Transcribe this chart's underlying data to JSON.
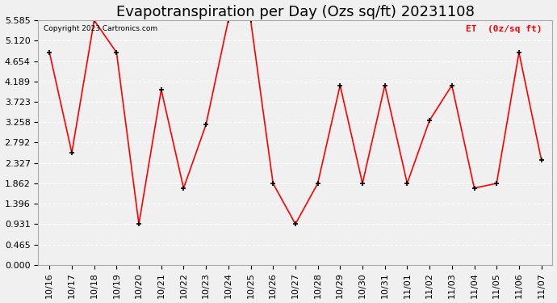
{
  "title": "Evapotranspiration per Day (Ozs sq/ft) 20231108",
  "copyright": "Copyright 2023 Cartronics.com",
  "legend_label": "ET  (0z/sq ft)",
  "x_labels": [
    "10/16",
    "10/17",
    "10/18",
    "10/19",
    "10/20",
    "10/21",
    "10/22",
    "10/23",
    "10/24",
    "10/25",
    "10/26",
    "10/27",
    "10/28",
    "10/29",
    "10/30",
    "10/31",
    "11/01",
    "11/02",
    "11/03",
    "11/04",
    "11/05",
    "11/06",
    "11/07"
  ],
  "y_values": [
    4.85,
    2.56,
    5.585,
    4.85,
    0.931,
    4.0,
    1.75,
    3.2,
    5.585,
    5.585,
    1.86,
    0.931,
    1.86,
    4.1,
    1.86,
    4.1,
    1.86,
    3.3,
    4.1,
    1.75,
    1.86,
    4.85,
    2.4
  ],
  "ylim_min": 0.0,
  "ylim_max": 5.585,
  "yticks": [
    0.0,
    0.465,
    0.931,
    1.396,
    1.862,
    2.327,
    2.792,
    3.258,
    3.723,
    4.189,
    4.654,
    5.12,
    5.585
  ],
  "line_color": "red",
  "marker_color": "black",
  "bg_color": "#f0f0f0",
  "grid_color": "white",
  "title_fontsize": 13,
  "tick_fontsize": 8,
  "legend_color": "red"
}
